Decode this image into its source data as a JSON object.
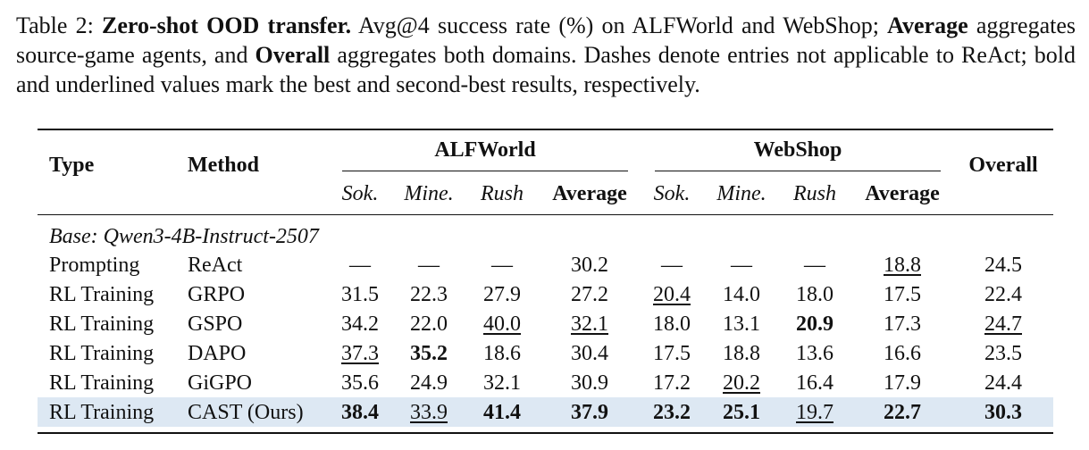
{
  "caption": [
    {
      "text": "Table 2: "
    },
    {
      "text": "Zero-shot OOD transfer.",
      "bold": true
    },
    {
      "text": " Avg@4 success rate (%) on ALFWorld and WebShop; "
    },
    {
      "text": "Average",
      "bold": true
    },
    {
      "text": " aggregates source-game agents, and "
    },
    {
      "text": "Overall",
      "bold": true
    },
    {
      "text": " aggregates both domains. Dashes denote entries not applicable to ReAct; bold and underlined values mark the best and second-best results, respectively."
    }
  ],
  "table": {
    "header": {
      "type": "Type",
      "method": "Method",
      "groups": [
        "ALFWorld",
        "WebShop"
      ],
      "overall": "Overall",
      "subcolumns": [
        "Sok.",
        "Mine.",
        "Rush",
        "Average",
        "Sok.",
        "Mine.",
        "Rush",
        "Average"
      ],
      "subcolumn_italic": [
        true,
        true,
        true,
        false,
        true,
        true,
        true,
        false
      ]
    },
    "section": "Base: Qwen3-4B-Instruct-2507",
    "rows": [
      {
        "type": "Prompting",
        "method": "ReAct",
        "cells": [
          "—",
          "—",
          "—",
          "30.2",
          "—",
          "—",
          "—",
          "18.8",
          "24.5"
        ],
        "style": [
          "plain",
          "plain",
          "plain",
          "plain",
          "plain",
          "plain",
          "plain",
          "underline",
          "plain"
        ]
      },
      {
        "type": "RL Training",
        "method": "GRPO",
        "cells": [
          "31.5",
          "22.3",
          "27.9",
          "27.2",
          "20.4",
          "14.0",
          "18.0",
          "17.5",
          "22.4"
        ],
        "style": [
          "plain",
          "plain",
          "plain",
          "plain",
          "underline",
          "plain",
          "plain",
          "plain",
          "plain"
        ]
      },
      {
        "type": "RL Training",
        "method": "GSPO",
        "cells": [
          "34.2",
          "22.0",
          "40.0",
          "32.1",
          "18.0",
          "13.1",
          "20.9",
          "17.3",
          "24.7"
        ],
        "style": [
          "plain",
          "plain",
          "underline",
          "underline",
          "plain",
          "plain",
          "bold",
          "plain",
          "underline"
        ]
      },
      {
        "type": "RL Training",
        "method": "DAPO",
        "cells": [
          "37.3",
          "35.2",
          "18.6",
          "30.4",
          "17.5",
          "18.8",
          "13.6",
          "16.6",
          "23.5"
        ],
        "style": [
          "underline",
          "bold",
          "plain",
          "plain",
          "plain",
          "plain",
          "plain",
          "plain",
          "plain"
        ]
      },
      {
        "type": "RL Training",
        "method": "GiGPO",
        "cells": [
          "35.6",
          "24.9",
          "32.1",
          "30.9",
          "17.2",
          "20.2",
          "16.4",
          "17.9",
          "24.4"
        ],
        "style": [
          "plain",
          "plain",
          "plain",
          "plain",
          "plain",
          "underline",
          "plain",
          "plain",
          "plain"
        ]
      },
      {
        "type": "RL Training",
        "method": "CAST (Ours)",
        "cells": [
          "38.4",
          "33.9",
          "41.4",
          "37.9",
          "23.2",
          "25.1",
          "19.7",
          "22.7",
          "30.3"
        ],
        "style": [
          "bold",
          "underline",
          "bold",
          "bold",
          "bold",
          "bold",
          "underline",
          "bold",
          "bold"
        ],
        "highlighted": true
      }
    ]
  }
}
